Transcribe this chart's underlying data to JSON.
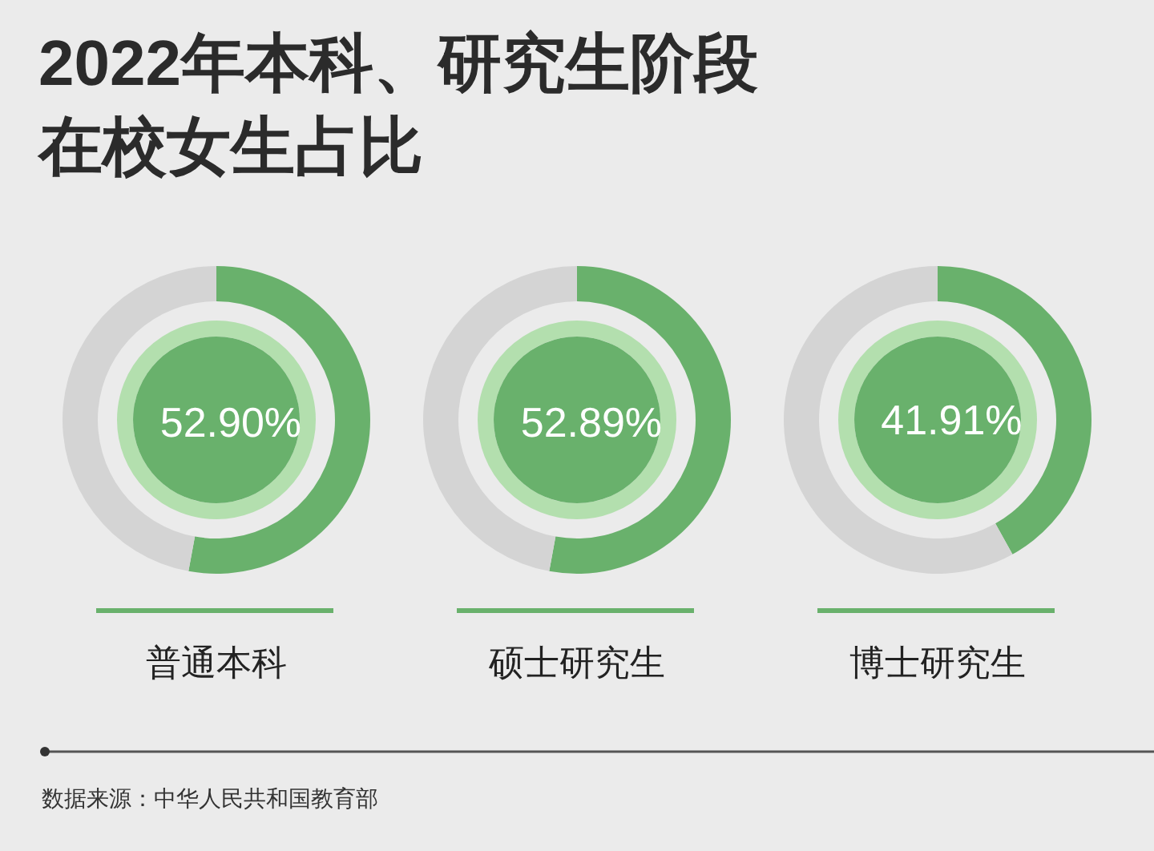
{
  "chart_data": [
    {
      "type": "donut",
      "title": "2022年本科、研究生阶段在校女生占比",
      "xlabel": "普通本科",
      "categories": [
        null,
        null
      ],
      "values": [
        52.9,
        47.1
      ],
      "colors": [
        "#69b16c",
        "#d4d4d4"
      ],
      "value_labels": [
        "52.90%",
        null
      ],
      "annotations": [
        "数据来源：中华人民共和国教育部"
      ]
    },
    {
      "type": "donut",
      "xlabel": "硕士研究生",
      "categories": [
        null,
        null
      ],
      "values": [
        52.89,
        47.11
      ],
      "colors": [
        "#69b16c",
        "#d4d4d4"
      ],
      "value_labels": [
        "52.89%",
        null
      ]
    },
    {
      "type": "donut",
      "xlabel": "博士研究生",
      "categories": [
        null,
        null
      ],
      "values": [
        41.91,
        58.09
      ],
      "colors": [
        "#69b16c",
        "#d4d4d4"
      ],
      "value_labels": [
        "41.91%",
        null
      ]
    }
  ]
}
